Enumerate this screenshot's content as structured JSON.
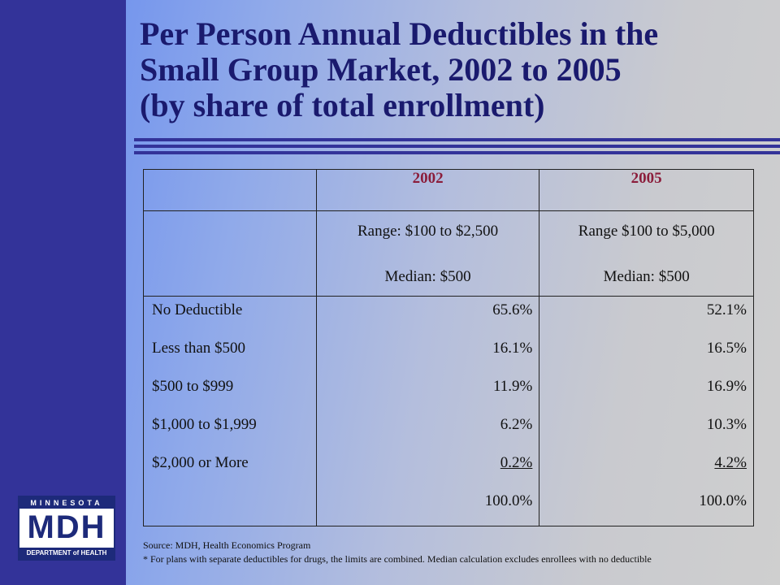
{
  "title": {
    "line1": "Per Person Annual Deductibles in the",
    "line2": "Small Group Market, 2002 to 2005",
    "line3": "(by share of total enrollment)"
  },
  "table": {
    "years": [
      "2002",
      "2005"
    ],
    "range": [
      {
        "range": "Range: $100 to $2,500",
        "median": "Median: $500"
      },
      {
        "range": "Range  $100 to $5,000",
        "median": "Median: $500"
      }
    ],
    "rows": [
      {
        "label": "No Deductible",
        "y2002": "65.6%",
        "y2005": "52.1%"
      },
      {
        "label": "Less than $500",
        "y2002": "16.1%",
        "y2005": "16.5%"
      },
      {
        "label": "$500 to $999",
        "y2002": "11.9%",
        "y2005": "16.9%"
      },
      {
        "label": "$1,000 to $1,999",
        "y2002": "6.2%",
        "y2005": "10.3%"
      },
      {
        "label": "$2,000 or More",
        "y2002": "0.2%",
        "y2005": "4.2%"
      }
    ],
    "totals": {
      "y2002": "100.0%",
      "y2005": "100.0%"
    }
  },
  "logo": {
    "top": "MINNESOTA",
    "mid": "MDH",
    "bottom": "DEPARTMENT of HEALTH"
  },
  "footer": {
    "source": "Source:  MDH, Health Economics Program",
    "note": "* For plans with separate deductibles for drugs, the limits are combined. Median calculation excludes enrollees with no deductible"
  },
  "colors": {
    "sidebar": "#333399",
    "title": "#1a1a6e",
    "year_header": "#8b1d3b"
  }
}
